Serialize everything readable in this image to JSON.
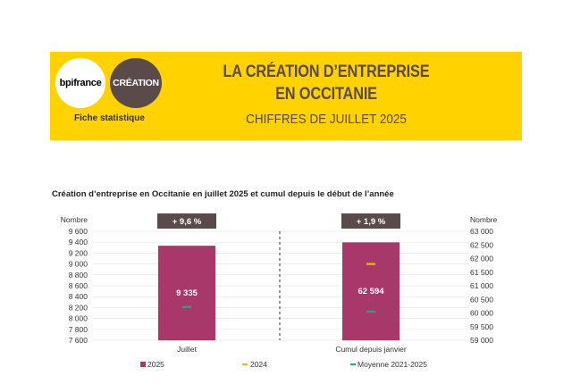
{
  "header": {
    "logo_bpifrance": "bpifrance",
    "logo_creation": "CRÉATION",
    "fiche": "Fiche statistique",
    "title_line1": "LA CRÉATION D’ENTREPRISE",
    "title_line2": "EN OCCITANIE",
    "title_line3": "CHIFFRES DE JUILLET 2025"
  },
  "colors": {
    "banner": "#ffd200",
    "bar": "#a8386a",
    "badge": "#5a4a4a",
    "mark_2024": "#f5b800",
    "mark_avg": "#2e9e86"
  },
  "chart_data": {
    "type": "bar",
    "title": "Création d’entreprise en Occitanie en juillet 2025 et cumul depuis le début de l’année",
    "categories": [
      "Juillet",
      "Cumul depuis janvier"
    ],
    "left_axis": {
      "label": "Nombre",
      "ticks": [
        "9 600",
        "9 400",
        "9 200",
        "9 000",
        "8 800",
        "8 600",
        "8 400",
        "8 200",
        "8 000",
        "7 800",
        "7 600"
      ],
      "range": [
        7600,
        9600
      ]
    },
    "right_axis": {
      "label": "Nombre",
      "ticks": [
        "63 000",
        "62 500",
        "62 000",
        "61 500",
        "61 000",
        "60 500",
        "60 000",
        "59 500",
        "59 000"
      ],
      "range": [
        59000,
        63000
      ]
    },
    "series": [
      {
        "name": "2025",
        "values": [
          9335,
          62594
        ],
        "value_labels": [
          "9 335",
          "62 594"
        ]
      },
      {
        "name": "2024",
        "values": [
          null,
          61800
        ]
      },
      {
        "name": "Moyenne 2021-2025",
        "values": [
          8210,
          60050
        ]
      }
    ],
    "badges": [
      "+ 9,6 %",
      "+ 1,9 %"
    ],
    "legend_position": "bottom"
  }
}
